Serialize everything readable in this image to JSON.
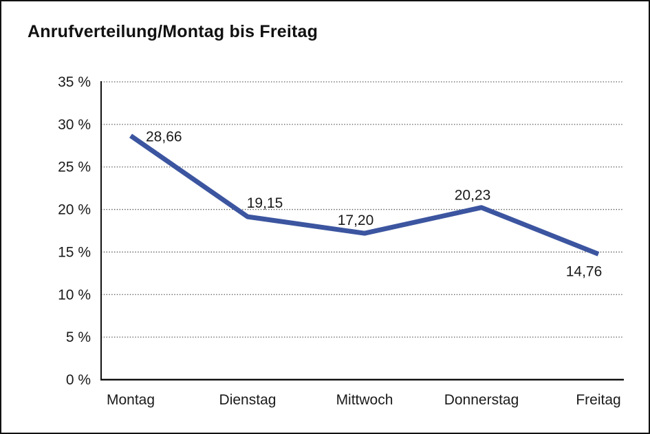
{
  "window": {
    "background_color": "#ffffff",
    "border_color": "#111111"
  },
  "chart": {
    "title": "Anrufverteilung/Montag bis Freitag"
  },
  "chart_data": {
    "type": "line",
    "title": "Anrufverteilung/Montag bis Freitag",
    "categories": [
      "Montag",
      "Dienstag",
      "Mittwoch",
      "Donnerstag",
      "Freitag"
    ],
    "values": [
      28.66,
      19.15,
      17.2,
      20.23,
      14.76
    ],
    "value_labels": [
      "28,66",
      "19,15",
      "17,20",
      "20,23",
      "14,76"
    ],
    "xlabel": "",
    "ylabel": "",
    "ylim": [
      0,
      35
    ],
    "ytick_values": [
      0,
      5,
      10,
      15,
      20,
      25,
      30,
      35
    ],
    "ytick_labels": [
      "0 %",
      "5 %",
      "10 %",
      "15 %",
      "20 %",
      "25 %",
      "30 %",
      "35 %"
    ],
    "grid": "horizontal-dotted",
    "legend": "none",
    "line_color": "#3C55A0",
    "grid_color": "#555555",
    "axis_color": "#111111",
    "text_color": "#1a1a1a"
  }
}
